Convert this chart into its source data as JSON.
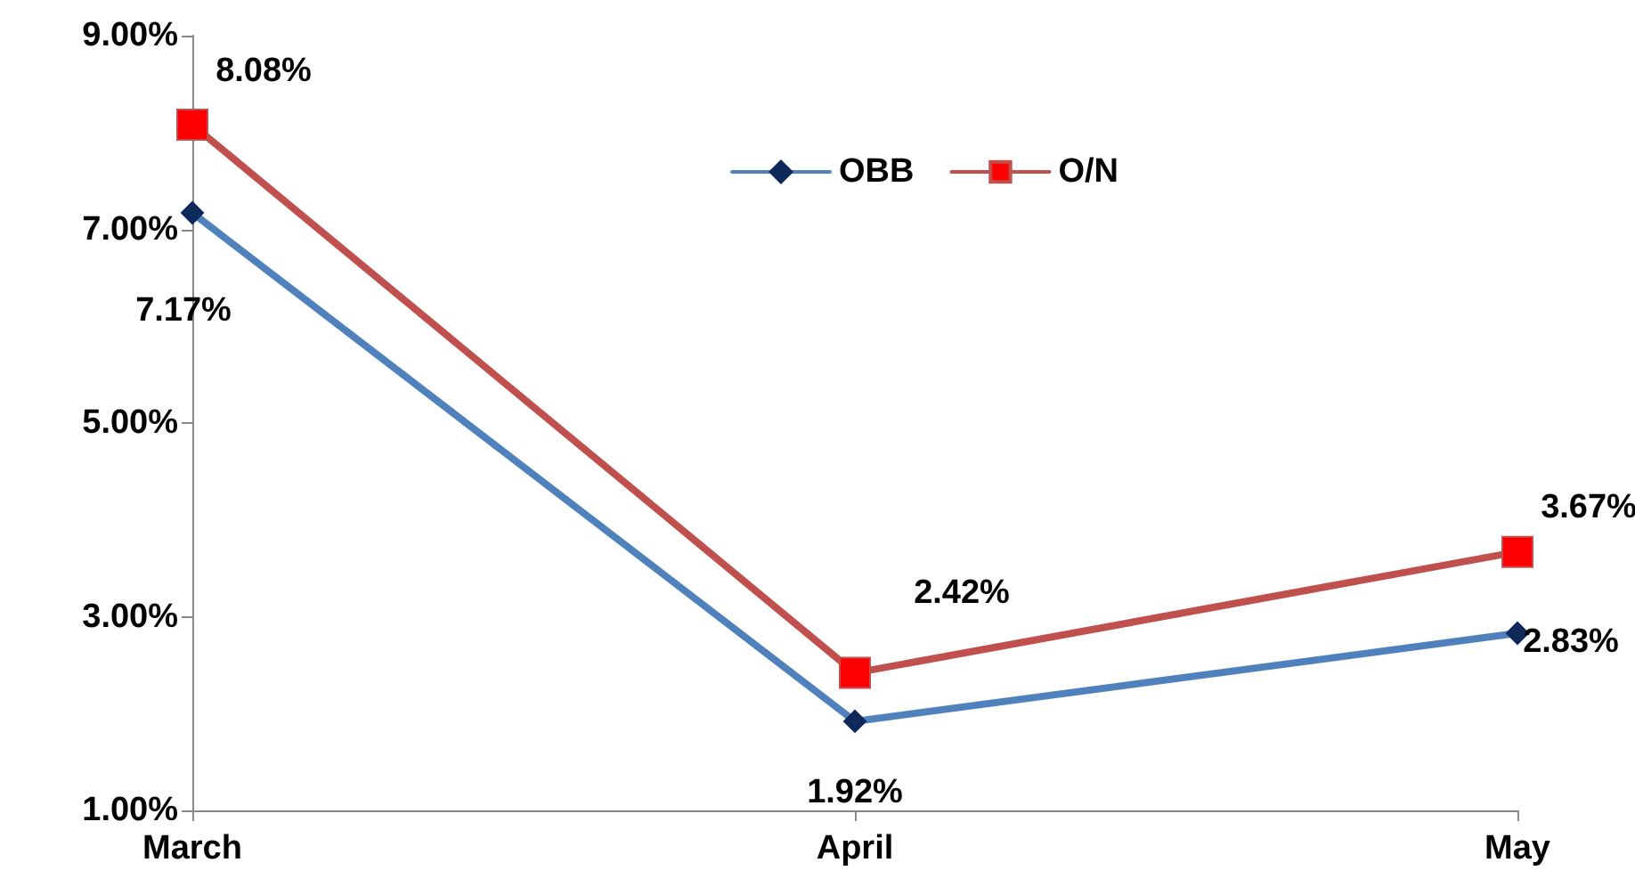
{
  "chart_data": {
    "type": "line",
    "categories": [
      "March",
      "April",
      "May"
    ],
    "series": [
      {
        "name": "OBB",
        "color": "#4f81bd",
        "marker": "diamond",
        "values": [
          7.17,
          1.92,
          2.83
        ],
        "value_labels": [
          "7.17%",
          "1.92%",
          "2.83%"
        ]
      },
      {
        "name": "O/N",
        "color": "#c0504d",
        "marker": "square",
        "values": [
          8.08,
          2.42,
          3.67
        ],
        "value_labels": [
          "8.08%",
          "2.42%",
          "3.67%"
        ]
      }
    ],
    "ylim": [
      1,
      9
    ],
    "yticks": [
      {
        "value": 1,
        "label": "1.00%"
      },
      {
        "value": 3,
        "label": "3.00%"
      },
      {
        "value": 5,
        "label": "5.00%"
      },
      {
        "value": 7,
        "label": "7.00%"
      },
      {
        "value": 9,
        "label": "9.00%"
      }
    ],
    "grid": false,
    "legend": "top",
    "line_style": "solid"
  }
}
